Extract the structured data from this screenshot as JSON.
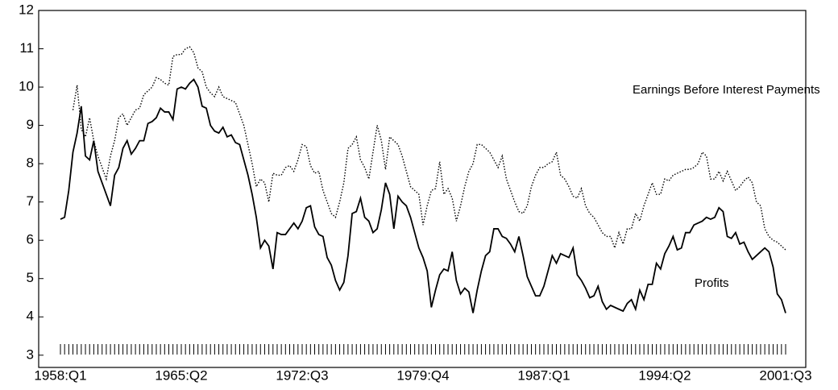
{
  "chart_data": {
    "type": "line",
    "categories": [
      "1958:Q1",
      null,
      null,
      null,
      null,
      null,
      null,
      null,
      null,
      null,
      null,
      null,
      null,
      null,
      null,
      null,
      null,
      null,
      null,
      null,
      null,
      null,
      null,
      null,
      null,
      null,
      null,
      null,
      null,
      "1965:Q2",
      null,
      null,
      null,
      null,
      null,
      null,
      null,
      null,
      null,
      null,
      null,
      null,
      null,
      null,
      null,
      null,
      null,
      null,
      null,
      null,
      null,
      null,
      null,
      null,
      null,
      null,
      null,
      null,
      "1972:Q3",
      null,
      null,
      null,
      null,
      null,
      null,
      null,
      null,
      null,
      null,
      null,
      null,
      null,
      null,
      null,
      null,
      null,
      null,
      null,
      null,
      null,
      null,
      null,
      null,
      null,
      null,
      null,
      null,
      "1979:Q4",
      null,
      null,
      null,
      null,
      null,
      null,
      null,
      null,
      null,
      null,
      null,
      null,
      null,
      null,
      null,
      null,
      null,
      null,
      null,
      null,
      null,
      null,
      null,
      null,
      null,
      null,
      null,
      null,
      "1987:Q1",
      null,
      null,
      null,
      null,
      null,
      null,
      null,
      null,
      null,
      null,
      null,
      null,
      null,
      null,
      null,
      null,
      null,
      null,
      null,
      null,
      null,
      null,
      null,
      null,
      null,
      null,
      null,
      null,
      "1994:Q2",
      null,
      null,
      null,
      null,
      null,
      null,
      null,
      null,
      null,
      null,
      null,
      null,
      null,
      null,
      null,
      null,
      null,
      null,
      null,
      null,
      null,
      null,
      null,
      null,
      null,
      null,
      null,
      null,
      "2001:Q3"
    ],
    "series": [
      {
        "name": "Earnings Before Interest Payments",
        "color": "#000000",
        "style": "dotted",
        "values": [
          null,
          null,
          null,
          9.4,
          10.05,
          8.9,
          8.7,
          9.2,
          8.6,
          8.2,
          7.9,
          7.6,
          8.2,
          8.6,
          9.2,
          9.3,
          9.0,
          9.2,
          9.4,
          9.45,
          9.8,
          9.9,
          10.0,
          10.25,
          10.2,
          10.1,
          10.05,
          10.8,
          10.85,
          10.85,
          11.0,
          11.05,
          10.9,
          10.5,
          10.4,
          10.0,
          9.85,
          9.75,
          10.0,
          9.75,
          9.7,
          9.65,
          9.6,
          9.3,
          9.0,
          8.5,
          8.0,
          7.4,
          7.6,
          7.5,
          7.0,
          7.75,
          7.7,
          7.7,
          7.9,
          7.95,
          7.8,
          8.1,
          8.5,
          8.45,
          7.95,
          7.75,
          7.8,
          7.3,
          7.0,
          6.7,
          6.6,
          7.0,
          7.5,
          8.4,
          8.5,
          8.7,
          8.1,
          7.9,
          7.6,
          8.3,
          9.0,
          8.6,
          7.85,
          8.7,
          8.6,
          8.5,
          8.2,
          7.8,
          7.4,
          7.3,
          7.2,
          6.4,
          6.9,
          7.3,
          7.35,
          8.05,
          7.2,
          7.35,
          7.1,
          6.5,
          6.9,
          7.4,
          7.8,
          8.0,
          8.5,
          8.5,
          8.4,
          8.3,
          8.1,
          7.9,
          8.2,
          7.6,
          7.3,
          7.0,
          6.75,
          6.7,
          6.9,
          7.4,
          7.7,
          7.9,
          7.9,
          8.0,
          8.05,
          8.3,
          7.7,
          7.6,
          7.4,
          7.15,
          7.1,
          7.35,
          6.9,
          6.7,
          6.6,
          6.4,
          6.2,
          6.1,
          6.1,
          5.8,
          6.2,
          5.9,
          6.3,
          6.3,
          6.7,
          6.5,
          6.9,
          7.2,
          7.5,
          7.2,
          7.2,
          7.6,
          7.55,
          7.7,
          7.75,
          7.8,
          7.85,
          7.85,
          7.9,
          8.0,
          8.3,
          8.2,
          7.6,
          7.6,
          7.8,
          7.55,
          7.8,
          7.55,
          7.3,
          7.4,
          7.55,
          7.65,
          7.5,
          7.0,
          6.9,
          6.3,
          6.1,
          6.0,
          5.95,
          5.85,
          5.75
        ]
      },
      {
        "name": "Profits",
        "color": "#000000",
        "style": "solid",
        "values": [
          6.55,
          6.6,
          7.3,
          8.3,
          8.8,
          9.5,
          8.2,
          8.1,
          8.6,
          7.8,
          7.5,
          7.2,
          6.9,
          7.7,
          7.9,
          8.4,
          8.6,
          8.25,
          8.4,
          8.6,
          8.6,
          9.05,
          9.1,
          9.2,
          9.45,
          9.35,
          9.35,
          9.15,
          9.95,
          10.0,
          9.95,
          10.1,
          10.2,
          10.0,
          9.5,
          9.45,
          9.0,
          8.85,
          8.8,
          8.95,
          8.7,
          8.75,
          8.55,
          8.5,
          8.1,
          7.7,
          7.2,
          6.6,
          5.8,
          6.0,
          5.85,
          5.25,
          6.2,
          6.15,
          6.15,
          6.3,
          6.45,
          6.3,
          6.5,
          6.85,
          6.9,
          6.35,
          6.15,
          6.1,
          5.55,
          5.35,
          4.95,
          4.7,
          4.9,
          5.6,
          6.7,
          6.75,
          7.1,
          6.6,
          6.5,
          6.2,
          6.3,
          6.8,
          7.5,
          7.2,
          6.3,
          7.15,
          7.0,
          6.9,
          6.6,
          6.2,
          5.8,
          5.55,
          5.2,
          4.25,
          4.7,
          5.1,
          5.25,
          5.2,
          5.7,
          4.95,
          4.6,
          4.75,
          4.65,
          4.1,
          4.7,
          5.2,
          5.6,
          5.7,
          6.3,
          6.3,
          6.1,
          6.05,
          5.9,
          5.7,
          6.1,
          5.6,
          5.05,
          4.8,
          4.55,
          4.55,
          4.8,
          5.2,
          5.6,
          5.4,
          5.65,
          5.6,
          5.55,
          5.8,
          5.1,
          4.95,
          4.75,
          4.5,
          4.55,
          4.8,
          4.4,
          4.2,
          4.3,
          4.25,
          4.2,
          4.15,
          4.35,
          4.45,
          4.2,
          4.7,
          4.45,
          4.85,
          4.85,
          5.4,
          5.25,
          5.65,
          5.85,
          6.1,
          5.75,
          5.8,
          6.2,
          6.2,
          6.4,
          6.45,
          6.5,
          6.6,
          6.55,
          6.6,
          6.85,
          6.75,
          6.1,
          6.05,
          6.2,
          5.9,
          5.95,
          5.7,
          5.5,
          5.6,
          5.7,
          5.8,
          5.7,
          5.3,
          4.6,
          4.45,
          4.1
        ]
      }
    ],
    "annotations": [
      "Earnings Before Interest Payments",
      "Profits"
    ],
    "ylim": [
      2.68,
      12
    ],
    "yticks": [
      3,
      4,
      5,
      6,
      7,
      8,
      9,
      10,
      11,
      12
    ],
    "grid": false
  }
}
